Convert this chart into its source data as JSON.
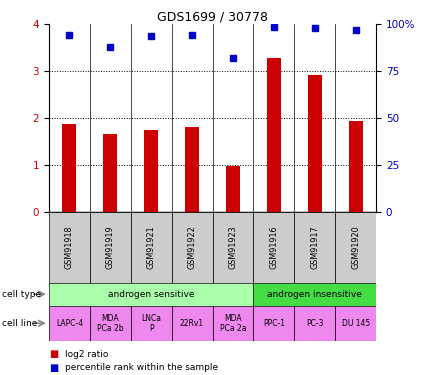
{
  "title": "GDS1699 / 30778",
  "samples": [
    "GSM91918",
    "GSM91919",
    "GSM91921",
    "GSM91922",
    "GSM91923",
    "GSM91916",
    "GSM91917",
    "GSM91920"
  ],
  "log2_ratio": [
    1.87,
    1.67,
    1.75,
    1.82,
    0.97,
    3.28,
    2.93,
    1.93
  ],
  "percentile_rank": [
    3.78,
    3.52,
    3.76,
    3.78,
    3.28,
    3.95,
    3.92,
    3.88
  ],
  "bar_color": "#cc0000",
  "dot_color": "#0000cc",
  "cell_types": [
    {
      "label": "androgen sensitive",
      "start": 0,
      "end": 5,
      "color": "#aaffaa"
    },
    {
      "label": "androgen insensitive",
      "start": 5,
      "end": 8,
      "color": "#44dd44"
    }
  ],
  "cell_lines": [
    "LAPC-4",
    "MDA\nPCa 2b",
    "LNCa\nP",
    "22Rv1",
    "MDA\nPCa 2a",
    "PPC-1",
    "PC-3",
    "DU 145"
  ],
  "cell_line_color": "#ee88ee",
  "gsm_box_color": "#cccccc",
  "ylim": [
    0,
    4
  ],
  "yticks_left": [
    0,
    1,
    2,
    3,
    4
  ],
  "yticks_right_vals": [
    0,
    25,
    50,
    75,
    100
  ],
  "yticks_right_labels": [
    "0",
    "25",
    "50",
    "75",
    "100%"
  ],
  "ylabel_left_color": "#cc0000",
  "ylabel_right_color": "#0000cc"
}
